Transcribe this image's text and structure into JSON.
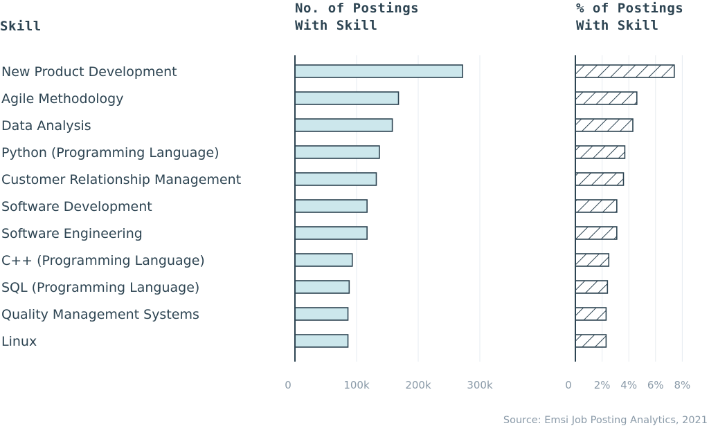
{
  "chart_data": {
    "type": "bar",
    "orientation": "horizontal",
    "categories": [
      "New Product Development",
      "Agile Methodology",
      "Data Analysis",
      "Python (Programming Language)",
      "Customer Relationship Management",
      "Software Development",
      "Software Engineering",
      "C++ (Programming Language)",
      "SQL (Programming Language)",
      "Quality Management Systems",
      "Linux"
    ],
    "category_header": "Skill",
    "panels": [
      {
        "header": [
          "No. of Postings",
          "With Skill"
        ],
        "values": [
          272000,
          168000,
          158000,
          137000,
          132000,
          117000,
          117000,
          93000,
          88000,
          86000,
          86000
        ],
        "ticks": [
          {
            "value": 0,
            "label": "0"
          },
          {
            "value": 100000,
            "label": "100k"
          },
          {
            "value": 200000,
            "label": "200k"
          },
          {
            "value": 300000,
            "label": "300k"
          }
        ],
        "xlim": [
          0,
          300000
        ],
        "fill": "#cce7ec",
        "pattern": "solid"
      },
      {
        "header": [
          "% of Postings",
          "With Skill"
        ],
        "values": [
          7.4,
          4.6,
          4.3,
          3.7,
          3.6,
          3.1,
          3.1,
          2.5,
          2.4,
          2.3,
          2.3
        ],
        "ticks": [
          {
            "value": 0,
            "label": "0"
          },
          {
            "value": 2,
            "label": "2%"
          },
          {
            "value": 4,
            "label": "4%"
          },
          {
            "value": 6,
            "label": "6%"
          },
          {
            "value": 8,
            "label": "8%"
          }
        ],
        "xlim": [
          0,
          8
        ],
        "fill": "#ffffff",
        "pattern": "hatch"
      }
    ],
    "source": "Source: Emsi Job Posting Analytics, 2021",
    "grid": true,
    "colors": {
      "stroke": "#2d4452",
      "grid": "#e6ebf0",
      "tick_text": "#8a9aa8"
    }
  }
}
